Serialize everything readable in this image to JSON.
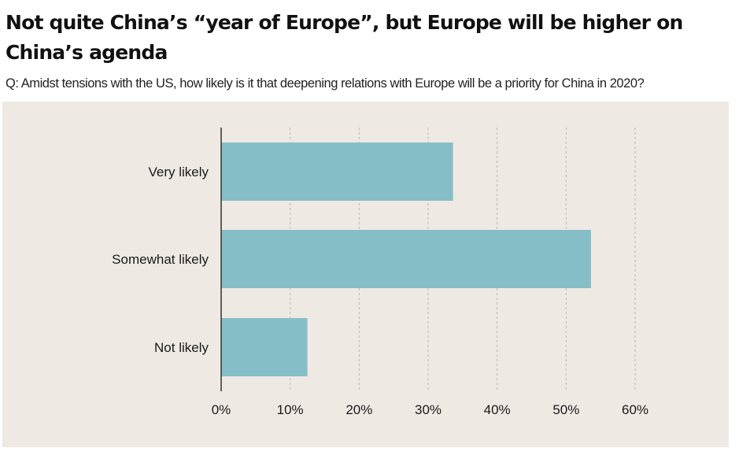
{
  "header": {
    "title": "Not quite China’s “year of Europe”, but Europe will be higher on China’s agenda",
    "subtitle": "Q: Amidst tensions with the US, how likely is it that deepening relations with Europe will be a priority for China in 2020?"
  },
  "colors": {
    "panel_background": "#eee9e3",
    "bar": "#85bec6",
    "gridline": "#b9b5b0",
    "axis": "#333333",
    "text": "#1a1a1a"
  },
  "chart_data": {
    "type": "bar",
    "orientation": "horizontal",
    "title": "Not quite China’s “year of Europe”, but Europe will be higher on China’s agenda",
    "subtitle": "Q: Amidst tensions with the US, how likely is it that deepening relations with Europe will be a priority for China in 2020?",
    "categories": [
      "Very likely",
      "Somewhat likely",
      "Not likely"
    ],
    "values": [
      33.6,
      53.6,
      12.5
    ],
    "unit": "%",
    "xlabel": "",
    "ylabel": "",
    "xlim": [
      0,
      60
    ],
    "xticks": [
      0,
      10,
      20,
      30,
      40,
      50,
      60
    ],
    "xtick_labels": [
      "0%",
      "10%",
      "20%",
      "30%",
      "40%",
      "50%",
      "60%"
    ],
    "grid": "vertical dashed",
    "legend": "none"
  }
}
